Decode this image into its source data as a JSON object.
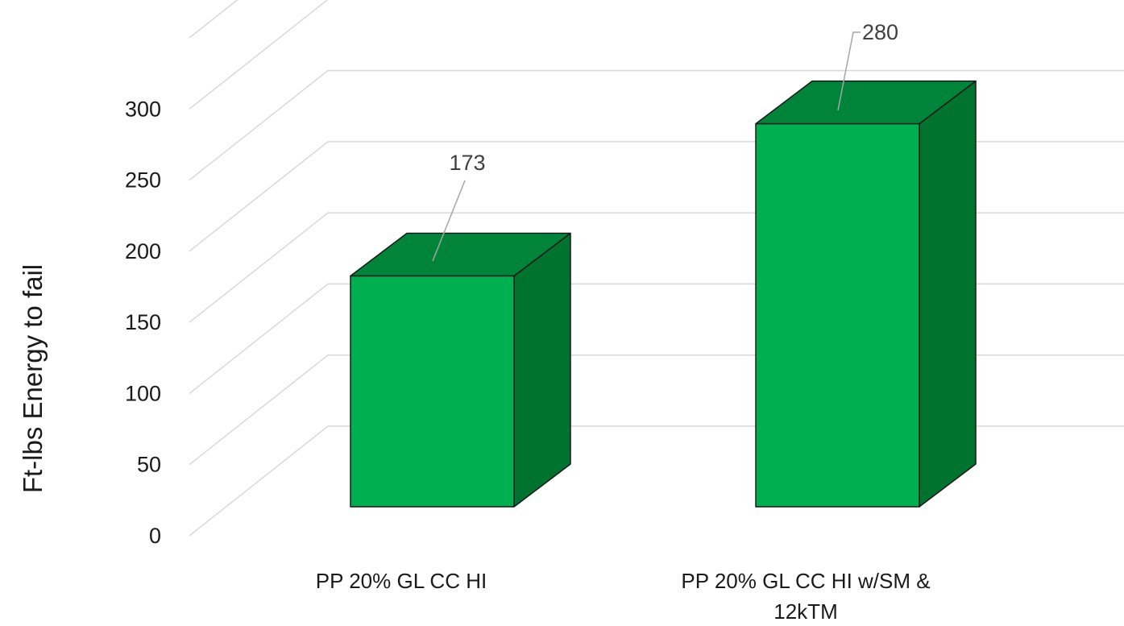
{
  "chart_data": {
    "type": "bar",
    "style": "3d-column",
    "categories": [
      "PP 20% GL CC HI",
      "PP 20% GL CC HI w/SM & 12kTM"
    ],
    "values": [
      173,
      280
    ],
    "data_labels": [
      "173",
      "280"
    ],
    "ylabel": "Ft-lbs Energy to fail",
    "ylim": [
      0,
      350
    ],
    "yticks": [
      0,
      50,
      100,
      150,
      200,
      250,
      300
    ],
    "grid": true,
    "legend": "none",
    "colors": {
      "front": "#00b050",
      "top": "#00843a",
      "side": "#00732f",
      "grid": "#d9d9d9",
      "leader": "#a6a6a6"
    }
  }
}
